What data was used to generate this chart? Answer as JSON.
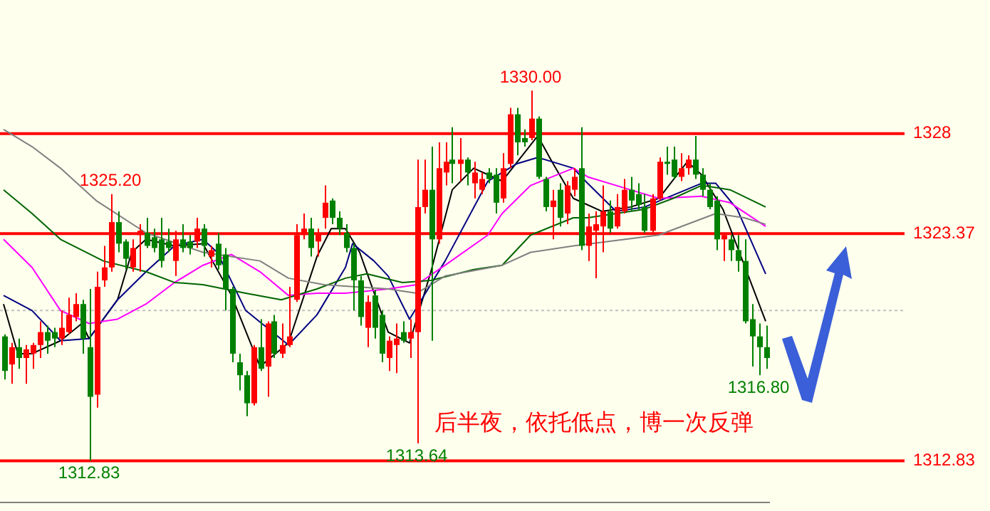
{
  "chart_data": {
    "type": "candlestick",
    "ylim": [
      1310.9,
      1334.2
    ],
    "tick_labels": false,
    "grid": false,
    "legend": false,
    "categories": [
      null,
      null,
      null,
      null,
      null,
      null,
      null,
      null,
      null,
      null,
      null,
      null,
      null,
      null,
      null,
      null,
      null,
      null,
      null,
      null,
      null,
      null,
      null,
      null,
      null,
      null,
      null,
      null,
      null,
      null,
      null,
      null,
      null,
      null,
      null,
      null,
      null,
      null,
      null,
      null,
      null,
      null,
      null,
      null,
      null,
      null,
      null,
      null,
      null,
      null,
      null,
      null,
      null,
      null,
      null,
      null,
      null,
      null,
      null,
      null,
      null,
      null,
      null,
      null,
      null,
      null,
      null,
      null,
      null,
      null,
      null,
      null,
      null,
      null,
      null,
      null,
      null,
      null,
      null,
      null,
      null,
      null,
      null,
      null,
      null,
      null,
      null,
      null,
      null,
      null,
      null,
      null,
      null,
      null,
      null,
      null,
      null,
      null,
      null,
      null,
      null,
      null,
      null,
      null,
      null,
      null,
      null,
      null
    ],
    "ohlc": [
      [
        1318.6,
        1318.7,
        1316.6,
        1317.0
      ],
      [
        1317.3,
        1318.3,
        1316.4,
        1318.1
      ],
      [
        1318.1,
        1318.5,
        1317.1,
        1317.6
      ],
      [
        1317.6,
        1318.2,
        1316.4,
        1318.0
      ],
      [
        1317.8,
        1318.3,
        1317.1,
        1318.2
      ],
      [
        1318.2,
        1319.3,
        1317.6,
        1318.8
      ],
      [
        1318.8,
        1319.1,
        1317.8,
        1318.4
      ],
      [
        1318.8,
        1319.0,
        1318.1,
        1318.5
      ],
      [
        1318.5,
        1319.8,
        1318.2,
        1319.0
      ],
      [
        1318.8,
        1320.4,
        1318.7,
        1319.6
      ],
      [
        1319.5,
        1320.6,
        1319.3,
        1320.1
      ],
      [
        1320.1,
        1320.3,
        1317.8,
        1318.5
      ],
      [
        1318.1,
        1320.8,
        1312.83,
        1315.8
      ],
      [
        1315.9,
        1321.6,
        1315.3,
        1320.9
      ],
      [
        1321.2,
        1322.8,
        1320.9,
        1321.8
      ],
      [
        1321.8,
        1325.2,
        1321.6,
        1323.9
      ],
      [
        1323.9,
        1324.4,
        1322.5,
        1322.9
      ],
      [
        1323.0,
        1323.1,
        1321.7,
        1322.2
      ],
      [
        1321.8,
        1323.1,
        1321.6,
        1322.7
      ],
      [
        1323.3,
        1323.8,
        1321.6,
        1323.5
      ],
      [
        1323.4,
        1324.1,
        1322.7,
        1322.8
      ],
      [
        1323.2,
        1323.6,
        1322.5,
        1322.7
      ],
      [
        1323.1,
        1324.1,
        1321.8,
        1322.1
      ],
      [
        1323.0,
        1323.6,
        1322.5,
        1322.7
      ],
      [
        1322.1,
        1323.5,
        1321.4,
        1323.1
      ],
      [
        1323.1,
        1323.8,
        1322.5,
        1322.7
      ],
      [
        1323.0,
        1323.3,
        1322.4,
        1322.7
      ],
      [
        1323.0,
        1324.1,
        1322.7,
        1323.6
      ],
      [
        1323.6,
        1323.8,
        1322.3,
        1322.8
      ],
      [
        1322.3,
        1322.8,
        1321.8,
        1322.6
      ],
      [
        1322.9,
        1323.4,
        1321.7,
        1321.9
      ],
      [
        1322.4,
        1322.7,
        1319.8,
        1320.8
      ],
      [
        1320.8,
        1320.9,
        1317.4,
        1317.8
      ],
      [
        1317.4,
        1317.8,
        1316.1,
        1316.8
      ],
      [
        1316.8,
        1317.0,
        1314.9,
        1315.5
      ],
      [
        1315.5,
        1318.2,
        1315.4,
        1318.1
      ],
      [
        1318.1,
        1319.4,
        1317.0,
        1317.1
      ],
      [
        1317.2,
        1319.3,
        1315.8,
        1319.2
      ],
      [
        1319.3,
        1319.6,
        1317.6,
        1317.8
      ],
      [
        1317.8,
        1319.2,
        1317.6,
        1318.2
      ],
      [
        1318.2,
        1320.9,
        1318.1,
        1318.6
      ],
      [
        1320.3,
        1323.8,
        1320.2,
        1323.3
      ],
      [
        1323.3,
        1324.3,
        1323.1,
        1323.6
      ],
      [
        1323.6,
        1324.1,
        1322.3,
        1322.7
      ],
      [
        1323.0,
        1323.6,
        1322.3,
        1323.4
      ],
      [
        1324.1,
        1325.6,
        1323.6,
        1324.8
      ],
      [
        1324.9,
        1325.0,
        1323.8,
        1324.1
      ],
      [
        1324.1,
        1324.4,
        1323.3,
        1323.6
      ],
      [
        1323.4,
        1323.8,
        1322.5,
        1322.7
      ],
      [
        1322.7,
        1322.9,
        1319.8,
        1321.2
      ],
      [
        1321.2,
        1321.4,
        1319.1,
        1319.5
      ],
      [
        1319.0,
        1320.5,
        1318.1,
        1320.2
      ],
      [
        1320.5,
        1320.75,
        1318.5,
        1319.0
      ],
      [
        1319.6,
        1319.8,
        1317.4,
        1317.8
      ],
      [
        1317.6,
        1318.6,
        1317.0,
        1318.4
      ],
      [
        1318.2,
        1319.2,
        1316.9,
        1318.5
      ],
      [
        1318.8,
        1319.3,
        1318.3,
        1318.4
      ],
      [
        1318.5,
        1319.4,
        1317.6,
        1318.8
      ],
      [
        1318.8,
        1326.8,
        1313.64,
        1324.6
      ],
      [
        1324.6,
        1326.8,
        1324.3,
        1325.4
      ],
      [
        1325.4,
        1327.4,
        1318.4,
        1323.1
      ],
      [
        1323.1,
        1327.6,
        1322.9,
        1326.4
      ],
      [
        1326.2,
        1327.6,
        1325.6,
        1326.7
      ],
      [
        1326.8,
        1328.3,
        1325.7,
        1326.6
      ],
      [
        1326.6,
        1327.8,
        1325.8,
        1326.8
      ],
      [
        1326.8,
        1326.9,
        1325.6,
        1326.2
      ],
      [
        1325.7,
        1326.7,
        1325.0,
        1326.2
      ],
      [
        1325.4,
        1326.2,
        1325.2,
        1325.9
      ],
      [
        1326.2,
        1326.4,
        1325.7,
        1325.9
      ],
      [
        1326.1,
        1326.4,
        1324.3,
        1324.8
      ],
      [
        1325.0,
        1327.1,
        1324.8,
        1326.4
      ],
      [
        1326.6,
        1329.2,
        1326.4,
        1328.9
      ],
      [
        1328.9,
        1329.2,
        1327.0,
        1327.6
      ],
      [
        1327.8,
        1328.2,
        1327.4,
        1327.6
      ],
      [
        1327.8,
        1330.0,
        1327.7,
        1328.7
      ],
      [
        1328.7,
        1328.8,
        1325.9,
        1326.0
      ],
      [
        1325.9,
        1326.0,
        1324.4,
        1324.6
      ],
      [
        1324.6,
        1325.4,
        1323.1,
        1324.9
      ],
      [
        1325.4,
        1325.7,
        1323.7,
        1324.1
      ],
      [
        1324.3,
        1325.8,
        1323.8,
        1325.6
      ],
      [
        1325.4,
        1326.4,
        1325.1,
        1326.0
      ],
      [
        1326.4,
        1328.3,
        1322.6,
        1322.8
      ],
      [
        1322.8,
        1324.3,
        1322.1,
        1323.7
      ],
      [
        1323.5,
        1324.4,
        1321.3,
        1323.8
      ],
      [
        1323.7,
        1325.6,
        1322.5,
        1324.4
      ],
      [
        1324.4,
        1324.9,
        1323.4,
        1323.6
      ],
      [
        1323.7,
        1325.2,
        1323.6,
        1324.6
      ],
      [
        1324.4,
        1325.9,
        1324.3,
        1325.4
      ],
      [
        1325.4,
        1326.0,
        1324.4,
        1324.9
      ],
      [
        1325.2,
        1325.7,
        1324.5,
        1324.7
      ],
      [
        1324.6,
        1325.2,
        1323.4,
        1323.5
      ],
      [
        1323.5,
        1325.2,
        1323.4,
        1325.0
      ],
      [
        1325.0,
        1326.9,
        1324.9,
        1326.7
      ],
      [
        1326.7,
        1327.4,
        1326.1,
        1326.6
      ],
      [
        1326.8,
        1327.4,
        1325.9,
        1326.0
      ],
      [
        1326.0,
        1327.1,
        1325.8,
        1326.4
      ],
      [
        1326.4,
        1327.0,
        1326.1,
        1326.8
      ],
      [
        1326.8,
        1327.9,
        1325.9,
        1326.1
      ],
      [
        1326.1,
        1326.4,
        1325.1,
        1325.4
      ],
      [
        1325.4,
        1325.7,
        1324.5,
        1324.6
      ],
      [
        1324.9,
        1325.1,
        1322.6,
        1323.1
      ],
      [
        1323.1,
        1323.4,
        1322.1,
        1323.3
      ],
      [
        1323.1,
        1323.3,
        1322.1,
        1322.6
      ],
      [
        1322.6,
        1323.3,
        1321.6,
        1322.1
      ],
      [
        1322.1,
        1323.1,
        1319.2,
        1319.3
      ],
      [
        1319.4,
        1320.1,
        1317.2,
        1318.6
      ],
      [
        1318.6,
        1319.2,
        1316.8,
        1318.1
      ],
      [
        1318.1,
        1319.1,
        1317.1,
        1317.6
      ]
    ],
    "series": [
      {
        "type": "line",
        "color": "#808080",
        "values": [
          1328.2,
          null,
          null,
          null,
          1327.4,
          null,
          null,
          null,
          1326.4,
          null,
          null,
          null,
          null,
          1324.9,
          null,
          null,
          null,
          null,
          null,
          null,
          1323.4,
          null,
          null,
          null,
          null,
          null,
          null,
          null,
          1322.5,
          null,
          null,
          null,
          null,
          null,
          null,
          null,
          1322.1,
          null,
          null,
          null,
          1321.3,
          null,
          null,
          null,
          null,
          1321.0,
          null,
          null,
          null,
          null,
          null,
          null,
          null,
          null,
          1320.8,
          null,
          null,
          null,
          1320.6,
          null,
          null,
          null,
          1321.4,
          null,
          null,
          null,
          null,
          null,
          null,
          null,
          1321.9,
          null,
          null,
          null,
          1322.5,
          null,
          null,
          null,
          null,
          null,
          1322.8,
          null,
          null,
          null,
          null,
          null,
          null,
          null,
          null,
          null,
          null,
          null,
          1323.3,
          null,
          null,
          null,
          null,
          null,
          null,
          null,
          1324.3,
          null,
          null,
          null,
          1324.1,
          null,
          null,
          1323.8
        ]
      },
      {
        "type": "line",
        "color": "#006400",
        "values": [
          1325.4,
          null,
          null,
          null,
          1324.3,
          null,
          null,
          null,
          1323.1,
          null,
          null,
          null,
          null,
          null,
          1322.1,
          null,
          null,
          null,
          null,
          null,
          1321.6,
          null,
          null,
          null,
          1321.1,
          null,
          null,
          null,
          1321.0,
          null,
          null,
          null,
          null,
          null,
          1320.6,
          null,
          null,
          null,
          null,
          1320.3,
          null,
          null,
          null,
          null,
          1320.8,
          null,
          null,
          null,
          1321.3,
          null,
          null,
          1321.5,
          null,
          null,
          null,
          null,
          1321.1,
          null,
          null,
          null,
          1321.2,
          null,
          null,
          null,
          null,
          null,
          1321.7,
          null,
          null,
          null,
          1321.9,
          null,
          null,
          null,
          1323.3,
          null,
          null,
          null,
          null,
          null,
          1324.1,
          null,
          1324.1,
          null,
          null,
          null,
          null,
          null,
          null,
          null,
          1324.5,
          null,
          null,
          null,
          1325.0,
          null,
          null,
          null,
          1325.6,
          null,
          null,
          null,
          1325.4,
          null,
          null,
          null,
          null,
          1324.6
        ]
      },
      {
        "type": "line",
        "color": "#ff00ff",
        "values": [
          1323.1,
          null,
          null,
          null,
          1321.8,
          null,
          null,
          null,
          1319.8,
          null,
          null,
          null,
          1319.2,
          null,
          null,
          null,
          1319.4,
          null,
          null,
          null,
          1320.1,
          null,
          null,
          null,
          1321.1,
          null,
          null,
          null,
          1321.9,
          null,
          null,
          null,
          1322.4,
          null,
          null,
          null,
          1321.6,
          null,
          null,
          null,
          1320.5,
          null,
          null,
          null,
          1320.6,
          null,
          null,
          null,
          1320.6,
          null,
          null,
          null,
          null,
          null,
          1320.8,
          null,
          null,
          null,
          1321.0,
          null,
          null,
          null,
          1321.9,
          null,
          null,
          null,
          null,
          null,
          1323.3,
          null,
          1324.3,
          null,
          null,
          null,
          1325.6,
          null,
          null,
          null,
          null,
          null,
          1326.4,
          null,
          1326.0,
          null,
          null,
          null,
          null,
          null,
          1325.4,
          null,
          null,
          null,
          1325.0,
          null,
          null,
          null,
          null,
          null,
          1325.1,
          null,
          null,
          null,
          1324.8,
          null,
          null,
          null,
          null,
          1323.7
        ]
      },
      {
        "type": "line",
        "color": "#000080",
        "values": [
          1320.5,
          null,
          null,
          null,
          1319.8,
          null,
          null,
          null,
          1318.4,
          null,
          null,
          null,
          1318.5,
          null,
          null,
          null,
          1320.3,
          null,
          null,
          null,
          1321.6,
          null,
          null,
          null,
          1322.8,
          null,
          null,
          null,
          1323.1,
          null,
          1322.5,
          null,
          null,
          null,
          1319.8,
          null,
          null,
          null,
          null,
          null,
          1318.2,
          null,
          null,
          null,
          1319.6,
          null,
          null,
          null,
          1321.8,
          1322.9,
          null,
          null,
          1322.1,
          null,
          1321.4,
          null,
          null,
          1319.4,
          null,
          null,
          null,
          null,
          1322.1,
          null,
          null,
          null,
          null,
          null,
          1325.8,
          null,
          null,
          null,
          1326.6,
          null,
          null,
          1326.9,
          null,
          null,
          null,
          null,
          1326.4,
          null,
          1325.7,
          null,
          null,
          null,
          1324.4,
          null,
          null,
          null,
          1324.6,
          null,
          null,
          null,
          null,
          null,
          null,
          null,
          1325.7,
          null,
          1325.7,
          null,
          null,
          1324.5,
          null,
          null,
          null,
          1321.5
        ]
      },
      {
        "type": "line",
        "color": "#000000",
        "values": [
          1320.1,
          null,
          1317.8,
          null,
          1317.8,
          null,
          null,
          null,
          1318.4,
          null,
          null,
          1319.2,
          1318.5,
          null,
          null,
          null,
          1320.3,
          null,
          1322.5,
          null,
          1323.1,
          null,
          null,
          null,
          1322.8,
          null,
          null,
          null,
          1322.9,
          null,
          null,
          null,
          1320.5,
          null,
          null,
          null,
          1317.2,
          null,
          null,
          null,
          1318.3,
          null,
          null,
          null,
          1322.3,
          null,
          1323.6,
          null,
          1323.6,
          null,
          1322.5,
          null,
          null,
          null,
          1318.8,
          null,
          null,
          1318.3,
          null,
          null,
          1321.6,
          null,
          null,
          1325.4,
          null,
          null,
          1326.4,
          null,
          null,
          null,
          1325.8,
          null,
          null,
          null,
          null,
          1327.9,
          null,
          1326.7,
          null,
          null,
          1325.0,
          null,
          null,
          null,
          1324.4,
          null,
          null,
          null,
          1324.6,
          null,
          null,
          null,
          1325.0,
          null,
          null,
          null,
          1326.7,
          null,
          1326.1,
          null,
          null,
          1324.5,
          null,
          null,
          null,
          null,
          null,
          1319.3
        ]
      }
    ],
    "ref_lines": [
      {
        "axis": "y",
        "value": 1328,
        "label": "1328",
        "color": "#ff0000"
      },
      {
        "axis": "y",
        "value": 1323.37,
        "label": "1323.37",
        "color": "#ff0000"
      },
      {
        "axis": "y",
        "value": 1312.83,
        "label": "1312.83",
        "color": "#ff0000"
      },
      {
        "axis": "y",
        "value": 1319.8,
        "color": "#c0c0c0",
        "line_style": "dotted"
      }
    ],
    "annotations": [
      {
        "text": "1325.20",
        "y": 1325.2
      },
      {
        "text": "1312.83",
        "y": 1312.83
      },
      {
        "text": "1313.64",
        "y": 1313.64
      },
      {
        "text": "1330.00",
        "y": 1330.0
      },
      {
        "text": "1316.80",
        "y": 1316.8
      },
      "后半夜，依托低点，博一次反弹"
    ]
  }
}
